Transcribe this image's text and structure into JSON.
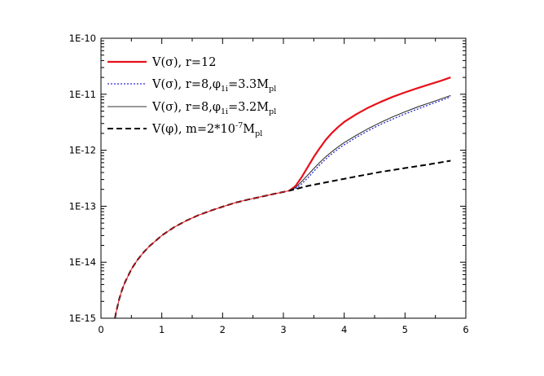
{
  "chart_data": {
    "type": "line",
    "title": "",
    "xlabel": "",
    "ylabel": "",
    "xlim": [
      0,
      6
    ],
    "ylim": [
      1e-15,
      1e-10
    ],
    "yscale": "log",
    "grid": false,
    "legend_placement": "top-left",
    "x_ticks": [
      0,
      1,
      2,
      3,
      4,
      5,
      6
    ],
    "x_tick_labels": [
      "0",
      "1",
      "2",
      "3",
      "4",
      "5",
      "6"
    ],
    "y_ticks": [
      1e-15,
      1e-14,
      1e-13,
      1e-12,
      1e-11,
      1e-10
    ],
    "y_tick_labels": [
      "1E-15",
      "1E-14",
      "1E-13",
      "1E-12",
      "1E-11",
      "1E-10"
    ],
    "legend": [
      {
        "main": "V(σ), r=12",
        "parts": [
          {
            "t": "V(σ), r=12"
          }
        ]
      },
      {
        "main": "V(σ), r=8,φ1i=3.3Mpl",
        "parts": [
          {
            "t": "V(σ), r=8,φ"
          },
          {
            "t": "1i",
            "s": "sub"
          },
          {
            "t": "=3.3M"
          },
          {
            "t": "pl",
            "s": "sub"
          }
        ]
      },
      {
        "main": "V(σ), r=8,φ1i=3.2Mpl",
        "parts": [
          {
            "t": "V(σ), r=8,φ"
          },
          {
            "t": "1i",
            "s": "sub"
          },
          {
            "t": "=3.2M"
          },
          {
            "t": "pl",
            "s": "sub"
          }
        ]
      },
      {
        "main": "V(φ),  m=2*10-7Mpl",
        "parts": [
          {
            "t": "V(φ),  m=2*10"
          },
          {
            "t": "-7",
            "s": "sup"
          },
          {
            "t": "M"
          },
          {
            "t": "pl",
            "s": "sub"
          }
        ]
      }
    ],
    "series": [
      {
        "color": "#e8101a",
        "dash": "",
        "width": 2.2,
        "x": [
          3.1,
          3.2,
          3.3,
          3.4,
          3.5,
          3.6,
          3.7,
          3.8,
          3.9,
          4.0,
          4.2,
          4.4,
          4.6,
          4.8,
          5.0,
          5.2,
          5.4,
          5.6,
          5.75
        ],
        "y": [
          1.9e-13,
          2.3e-13,
          3.3e-13,
          5e-13,
          7.6e-13,
          1.1e-12,
          1.55e-12,
          2.05e-12,
          2.6e-12,
          3.2e-12,
          4.4e-12,
          5.8e-12,
          7.3e-12,
          9e-12,
          1.08e-11,
          1.28e-11,
          1.5e-11,
          1.75e-11,
          2e-11
        ]
      },
      {
        "color": "#2b2bd6",
        "dash": "2,2",
        "width": 1.3,
        "x": [
          3.1,
          3.2,
          3.3,
          3.4,
          3.5,
          3.6,
          3.7,
          3.8,
          3.9,
          4.0,
          4.2,
          4.4,
          4.6,
          4.8,
          5.0,
          5.2,
          5.4,
          5.6,
          5.75
        ],
        "y": [
          1.9e-13,
          2.05e-13,
          2.5e-13,
          3.2e-13,
          4.2e-13,
          5.5e-13,
          7e-13,
          8.7e-13,
          1.05e-12,
          1.25e-12,
          1.7e-12,
          2.25e-12,
          2.9e-12,
          3.6e-12,
          4.45e-12,
          5.4e-12,
          6.5e-12,
          7.8e-12,
          9e-12
        ]
      },
      {
        "color": "#333333",
        "dash": "",
        "width": 1.1,
        "x": [
          3.1,
          3.2,
          3.3,
          3.4,
          3.5,
          3.6,
          3.7,
          3.8,
          3.9,
          4.0,
          4.2,
          4.4,
          4.6,
          4.8,
          5.0,
          5.2,
          5.4,
          5.6,
          5.75
        ],
        "y": [
          1.9e-13,
          2.15e-13,
          2.75e-13,
          3.6e-13,
          4.7e-13,
          6.1e-13,
          7.7e-13,
          9.5e-13,
          1.15e-12,
          1.37e-12,
          1.85e-12,
          2.45e-12,
          3.15e-12,
          3.95e-12,
          4.85e-12,
          5.9e-12,
          7e-12,
          8.3e-12,
          9.5e-12
        ]
      },
      {
        "color": "#000000",
        "dash": "7,4",
        "width": 2.0,
        "x": [
          0.23,
          0.25,
          0.3,
          0.35,
          0.4,
          0.5,
          0.6,
          0.7,
          0.8,
          1.0,
          1.2,
          1.4,
          1.6,
          1.8,
          2.0,
          2.2,
          2.4,
          2.6,
          2.8,
          3.0,
          3.1,
          3.4,
          3.8,
          4.2,
          4.6,
          5.0,
          5.4,
          5.75
        ],
        "y": [
          1e-15,
          1.3e-15,
          2.2e-15,
          3.3e-15,
          4.5e-15,
          7.5e-15,
          1.1e-14,
          1.5e-14,
          1.95e-14,
          3e-14,
          4.2e-14,
          5.5e-14,
          6.9e-14,
          8.3e-14,
          9.8e-14,
          1.15e-13,
          1.3e-13,
          1.45e-13,
          1.62e-13,
          1.8e-13,
          1.9e-13,
          2.3e-13,
          2.8e-13,
          3.4e-13,
          4.1e-13,
          4.8e-13,
          5.6e-13,
          6.5e-13
        ]
      },
      {
        "color": "#e8101a",
        "dash": "",
        "width": 1.0,
        "x": [
          0.23,
          0.25,
          0.3,
          0.35,
          0.4,
          0.5,
          0.6,
          0.7,
          0.8,
          1.0,
          1.2,
          1.4,
          1.6,
          1.8,
          2.0,
          2.2,
          2.4,
          2.6,
          2.8,
          3.0,
          3.1
        ],
        "y": [
          1e-15,
          1.3e-15,
          2.2e-15,
          3.3e-15,
          4.5e-15,
          7.5e-15,
          1.1e-14,
          1.5e-14,
          1.95e-14,
          3e-14,
          4.2e-14,
          5.5e-14,
          6.9e-14,
          8.3e-14,
          9.8e-14,
          1.15e-13,
          1.3e-13,
          1.45e-13,
          1.62e-13,
          1.8e-13,
          1.9e-13
        ]
      }
    ]
  }
}
